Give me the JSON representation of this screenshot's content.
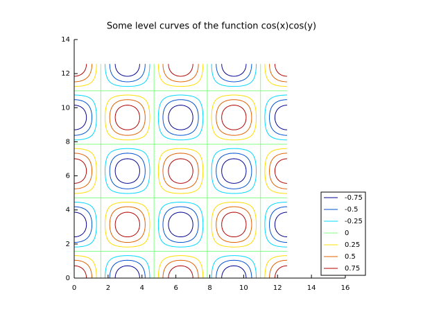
{
  "chart_data": {
    "type": "contour",
    "title": "Some level curves of the function cos(x)cos(y)",
    "levels": [
      -0.75,
      -0.5,
      -0.25,
      0,
      0.25,
      0.5,
      0.75
    ],
    "colors": [
      "#00008f",
      "#0050d0",
      "#00d8ff",
      "#80ff80",
      "#ffdd00",
      "#e06000",
      "#b00000"
    ],
    "xlim": [
      0,
      16
    ],
    "xticks": [
      0,
      2,
      4,
      6,
      8,
      10,
      12,
      14,
      16
    ],
    "ylim": [
      0,
      14
    ],
    "yticks": [
      0,
      2,
      4,
      6,
      8,
      10,
      12,
      14
    ],
    "legend": "lower right"
  }
}
